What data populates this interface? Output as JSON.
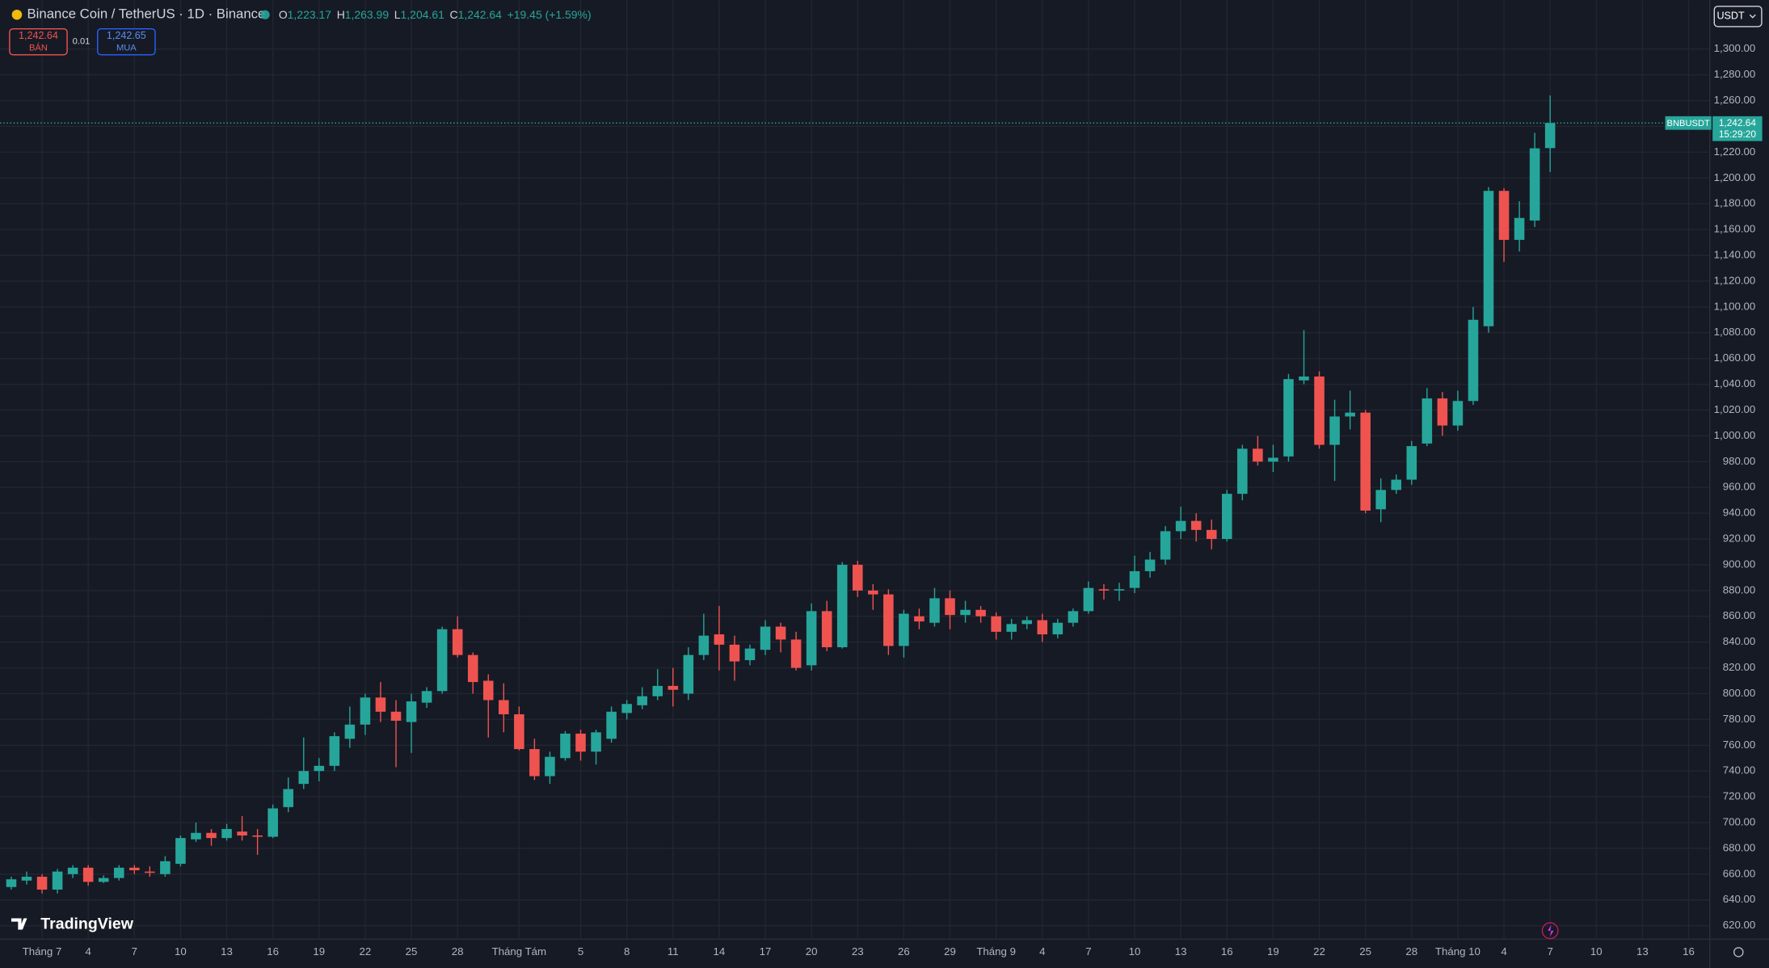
{
  "header": {
    "symbol": "Binance Coin / TetherUS · 1D · Binance",
    "o_key": "O",
    "o": "1,223.17",
    "h_key": "H",
    "h": "1,263.99",
    "l_key": "L",
    "l": "1,204.61",
    "c_key": "C",
    "c": "1,242.64",
    "change": "+19.45 (+1.59%)"
  },
  "trade": {
    "sell_price": "1,242.64",
    "sell_label": "BÁN",
    "spread": "0.01",
    "buy_price": "1,242.65",
    "buy_label": "MUA"
  },
  "currency": "USDT",
  "price_tag": {
    "symbol": "BNBUSDT",
    "price": "1,242.64",
    "countdown": "15:29:20"
  },
  "logo": "TradingView",
  "chart_data": {
    "type": "candlestick",
    "up_color": "#26a69a",
    "down_color": "#ef5350",
    "grid": true,
    "categories": [
      null,
      null,
      "Tháng 7",
      null,
      null,
      "4",
      null,
      null,
      "7",
      null,
      null,
      "10",
      null,
      null,
      "13",
      null,
      null,
      "16",
      null,
      null,
      "19",
      null,
      null,
      "22",
      null,
      null,
      "25",
      null,
      null,
      "28",
      null,
      null,
      null,
      "Tháng Tám",
      null,
      null,
      null,
      "5",
      null,
      null,
      "8",
      null,
      null,
      "11",
      null,
      null,
      "14",
      null,
      null,
      "17",
      null,
      null,
      "20",
      null,
      null,
      "23",
      null,
      null,
      "26",
      null,
      null,
      "29",
      null,
      null,
      "Tháng 9",
      null,
      null,
      "4",
      null,
      null,
      "7",
      null,
      null,
      "10",
      null,
      null,
      "13",
      null,
      null,
      "16",
      null,
      null,
      "19",
      null,
      null,
      "22",
      null,
      null,
      "25",
      null,
      null,
      "28",
      null,
      null,
      "Tháng 10",
      null,
      null,
      "4",
      null,
      null,
      "7",
      null,
      null,
      "10",
      null,
      null,
      "13",
      null,
      null,
      "16"
    ],
    "open": [
      650,
      655,
      658,
      648,
      660,
      665,
      654,
      657,
      665,
      662,
      660,
      668,
      687,
      692,
      688,
      693,
      690,
      689,
      712,
      730,
      740,
      744,
      765,
      776,
      797,
      786,
      778,
      793,
      802,
      850,
      830,
      810,
      795,
      784,
      757,
      736,
      750,
      769,
      755,
      765,
      785,
      791,
      798,
      806,
      800,
      830,
      846,
      838,
      826,
      834,
      852,
      842,
      822,
      864,
      836,
      900,
      880,
      877,
      837,
      860,
      855,
      874,
      861,
      865,
      860,
      848,
      854,
      857,
      846,
      855,
      864,
      881,
      880,
      882,
      895,
      904,
      926,
      934,
      927,
      920,
      955,
      990,
      980,
      984,
      1043,
      1046,
      993,
      1015,
      1018,
      943,
      958,
      966,
      994,
      1029,
      1008,
      1027,
      1085,
      1190,
      1152,
      1167,
      1223.17,
      null,
      null,
      null,
      null,
      null,
      null,
      null,
      null,
      null
    ],
    "high": [
      658,
      662,
      660,
      664,
      667,
      667,
      659,
      667,
      667,
      666,
      674,
      690,
      700,
      695,
      699,
      705,
      695,
      714,
      735,
      766,
      750,
      770,
      790,
      800,
      809,
      795,
      800,
      805,
      852,
      860,
      832,
      815,
      808,
      790,
      765,
      755,
      771,
      772,
      772,
      790,
      795,
      805,
      819,
      820,
      836,
      862,
      868,
      845,
      838,
      857,
      855,
      848,
      870,
      872,
      902,
      903,
      885,
      881,
      865,
      866,
      882,
      880,
      872,
      868,
      863,
      858,
      860,
      862,
      858,
      866,
      887,
      885,
      886,
      907,
      910,
      930,
      945,
      940,
      935,
      958,
      993,
      1000,
      993,
      1048,
      1082,
      1050,
      1028,
      1035,
      1020,
      967,
      970,
      996,
      1037,
      1034,
      1035,
      1100,
      1193,
      1192,
      1182,
      1235,
      1263.99,
      null,
      null,
      null,
      null,
      null,
      null,
      null,
      null,
      null
    ],
    "low": [
      648,
      652,
      645,
      645,
      657,
      651,
      653,
      655,
      660,
      658,
      658,
      666,
      685,
      682,
      686,
      686,
      675,
      688,
      708,
      726,
      732,
      740,
      758,
      768,
      778,
      743,
      754,
      789,
      800,
      828,
      800,
      766,
      770,
      756,
      733,
      730,
      748,
      748,
      745,
      762,
      780,
      788,
      795,
      790,
      795,
      826,
      818,
      810,
      822,
      830,
      832,
      818,
      818,
      833,
      835,
      875,
      865,
      830,
      828,
      850,
      852,
      850,
      855,
      855,
      842,
      842,
      850,
      840,
      843,
      852,
      862,
      873,
      872,
      878,
      890,
      900,
      920,
      918,
      912,
      918,
      950,
      977,
      972,
      980,
      1040,
      990,
      965,
      1005,
      940,
      933,
      955,
      962,
      992,
      1000,
      1004,
      1024,
      1080,
      1135,
      1143,
      1162,
      1204.61,
      null,
      null,
      null,
      null,
      null,
      null,
      null,
      null,
      null
    ],
    "close": [
      656,
      658,
      648,
      662,
      665,
      654,
      657,
      665,
      663,
      661,
      670,
      688,
      692,
      688,
      695,
      690,
      689,
      711,
      726,
      740,
      744,
      767,
      776,
      797,
      786,
      779,
      794,
      802,
      850,
      830,
      809,
      795,
      784,
      757,
      736,
      751,
      769,
      755,
      770,
      786,
      792,
      798,
      806,
      803,
      830,
      845,
      838,
      825,
      835,
      852,
      842,
      820,
      864,
      836,
      900,
      880,
      877,
      837,
      862,
      856,
      874,
      861,
      865,
      860,
      848,
      854,
      857,
      846,
      855,
      864,
      882,
      880,
      881,
      895,
      904,
      926,
      934,
      927,
      920,
      955,
      990,
      980,
      983,
      1044,
      1046,
      993,
      1015,
      1018,
      942,
      958,
      966,
      992,
      1029,
      1008,
      1027,
      1090,
      1190,
      1152,
      1169,
      1223,
      1242.64,
      null,
      null,
      null,
      null,
      null,
      null,
      null,
      null,
      null
    ],
    "ylim": [
      610,
      1338
    ],
    "yticks": [
      {
        "value": 620,
        "label": "620.00"
      },
      {
        "value": 640,
        "label": "640.00"
      },
      {
        "value": 660,
        "label": "660.00"
      },
      {
        "value": 680,
        "label": "680.00"
      },
      {
        "value": 700,
        "label": "700.00"
      },
      {
        "value": 720,
        "label": "720.00"
      },
      {
        "value": 740,
        "label": "740.00"
      },
      {
        "value": 760,
        "label": "760.00"
      },
      {
        "value": 780,
        "label": "780.00"
      },
      {
        "value": 800,
        "label": "800.00"
      },
      {
        "value": 820,
        "label": "820.00"
      },
      {
        "value": 840,
        "label": "840.00"
      },
      {
        "value": 860,
        "label": "860.00"
      },
      {
        "value": 880,
        "label": "880.00"
      },
      {
        "value": 900,
        "label": "900.00"
      },
      {
        "value": 920,
        "label": "920.00"
      },
      {
        "value": 940,
        "label": "940.00"
      },
      {
        "value": 960,
        "label": "960.00"
      },
      {
        "value": 980,
        "label": "980.00"
      },
      {
        "value": 1000,
        "label": "1,000.00"
      },
      {
        "value": 1020,
        "label": "1,020.00"
      },
      {
        "value": 1040,
        "label": "1,040.00"
      },
      {
        "value": 1060,
        "label": "1,060.00"
      },
      {
        "value": 1080,
        "label": "1,080.00"
      },
      {
        "value": 1100,
        "label": "1,100.00"
      },
      {
        "value": 1120,
        "label": "1,120.00"
      },
      {
        "value": 1140,
        "label": "1,140.00"
      },
      {
        "value": 1160,
        "label": "1,160.00"
      },
      {
        "value": 1180,
        "label": "1,180.00"
      },
      {
        "value": 1200,
        "label": "1,200.00"
      },
      {
        "value": 1220,
        "label": "1,220.00"
      },
      {
        "value": 1240,
        "label": "1,240.00"
      },
      {
        "value": 1260,
        "label": "1,260.00"
      },
      {
        "value": 1280,
        "label": "1,280.00"
      },
      {
        "value": 1300,
        "label": "1,300.00"
      }
    ]
  }
}
